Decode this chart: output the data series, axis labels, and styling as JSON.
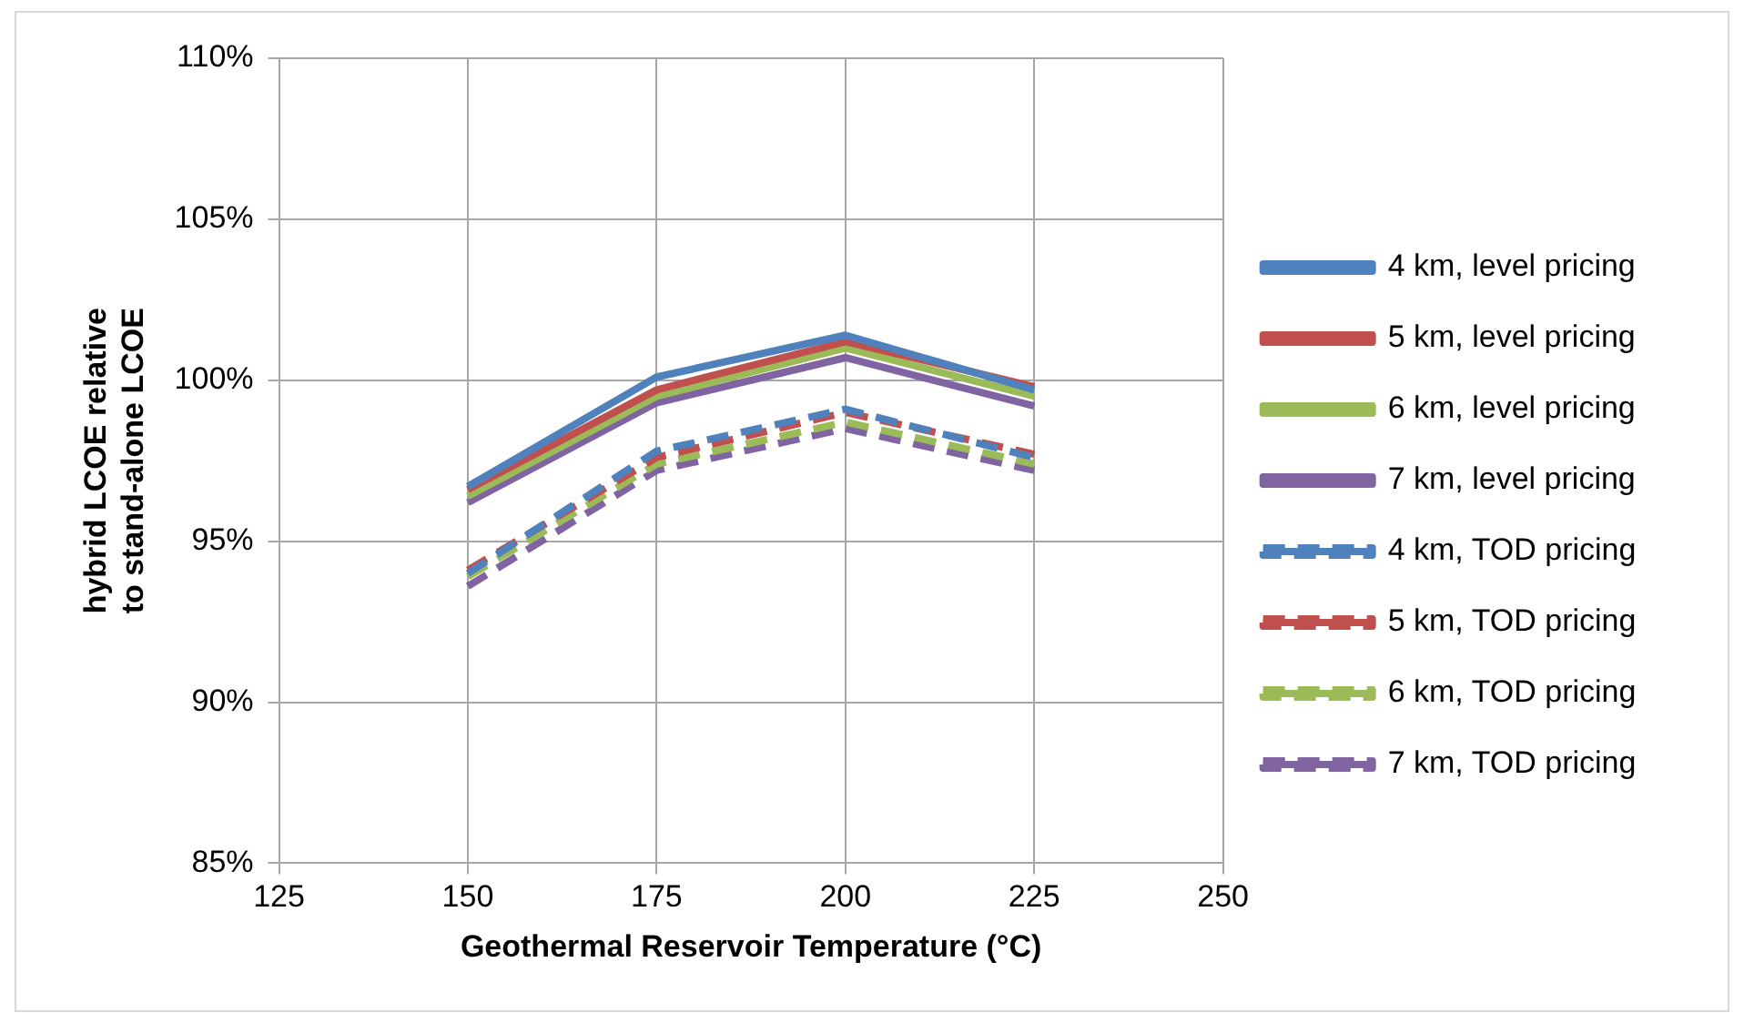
{
  "chart_data": {
    "type": "line",
    "xlabel": "Geothermal Reservoir Temperature (°C)",
    "ylabel": "hybrid LCOE relative to stand-alone LCOE",
    "x": [
      150,
      175,
      200,
      225
    ],
    "series": [
      {
        "name": "4 km, level pricing",
        "color": "#4f81bd",
        "values": [
          96.7,
          100.1,
          101.4,
          99.7
        ],
        "line_style": "solid"
      },
      {
        "name": "5 km, level pricing",
        "color": "#c0504d",
        "values": [
          96.6,
          99.7,
          101.2,
          99.8
        ],
        "line_style": "solid"
      },
      {
        "name": "6 km, level pricing",
        "color": "#9bbb59",
        "values": [
          96.4,
          99.5,
          101.0,
          99.5
        ],
        "line_style": "solid"
      },
      {
        "name": "7 km, level pricing",
        "color": "#8064a2",
        "values": [
          96.2,
          99.3,
          100.7,
          99.2
        ],
        "line_style": "solid"
      },
      {
        "name": "4 km, TOD pricing",
        "color": "#4f81bd",
        "values": [
          94.0,
          97.8,
          99.1,
          97.6
        ],
        "line_style": "dashed"
      },
      {
        "name": "5 km, TOD pricing",
        "color": "#c0504d",
        "values": [
          94.1,
          97.6,
          99.0,
          97.7
        ],
        "line_style": "dashed"
      },
      {
        "name": "6 km, TOD pricing",
        "color": "#9bbb59",
        "values": [
          93.9,
          97.4,
          98.7,
          97.4
        ],
        "line_style": "dashed"
      },
      {
        "name": "7 km, TOD pricing",
        "color": "#8064a2",
        "values": [
          93.6,
          97.2,
          98.5,
          97.2
        ],
        "line_style": "dashed"
      }
    ],
    "xlim": [
      125,
      250
    ],
    "xticks": [
      125,
      150,
      175,
      200,
      225,
      250
    ],
    "ylim": [
      85,
      110
    ],
    "yticks": [
      {
        "value": 85,
        "label": "85%"
      },
      {
        "value": 90,
        "label": "90%"
      },
      {
        "value": 95,
        "label": "95%"
      },
      {
        "value": 100,
        "label": "100%"
      },
      {
        "value": 105,
        "label": "105%"
      },
      {
        "value": 110,
        "label": "110%"
      }
    ],
    "grid": true,
    "legend": "right",
    "marker": "none"
  }
}
